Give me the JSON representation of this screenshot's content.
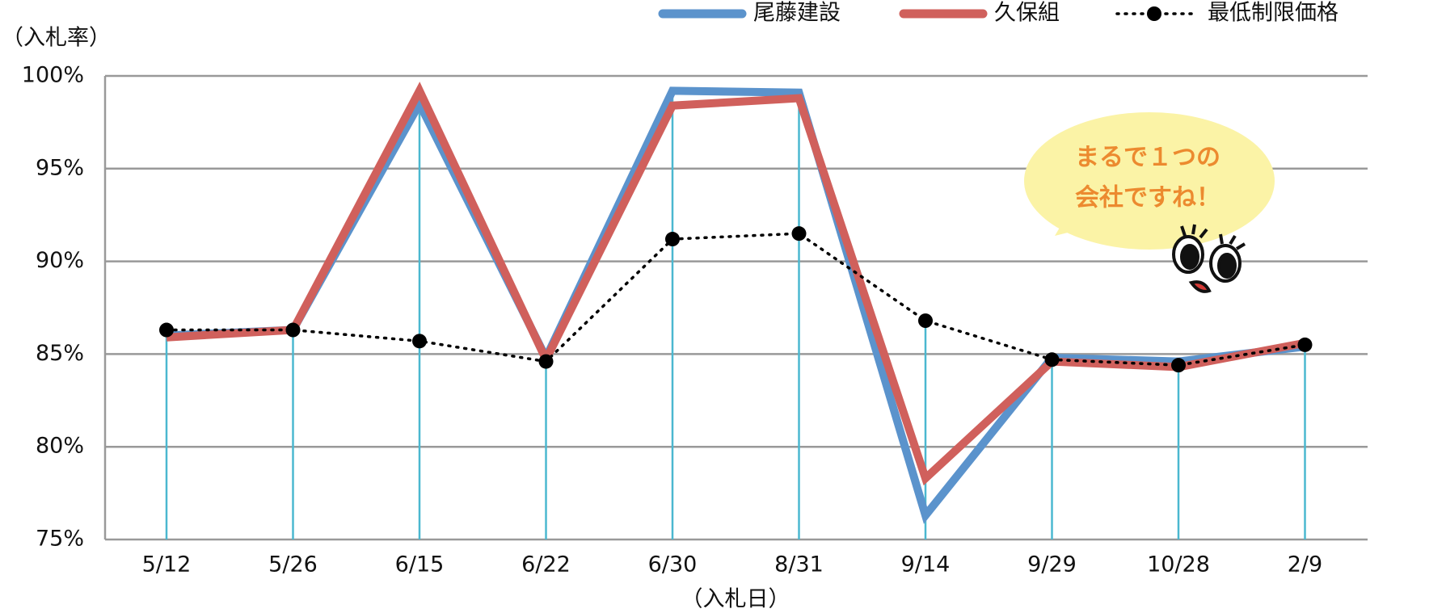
{
  "chart_data": {
    "type": "line",
    "y_label": "（入札率）",
    "x_label": "（入札日）",
    "categories": [
      "5/12",
      "5/26",
      "6/15",
      "6/22",
      "6/30",
      "8/31",
      "9/14",
      "9/29",
      "10/28",
      "2/9"
    ],
    "series": [
      {
        "name": "尾藤建設",
        "color": "#5b93cc",
        "values": [
          86.0,
          86.3,
          98.5,
          84.8,
          99.2,
          99.1,
          76.3,
          84.8,
          84.6,
          85.4
        ]
      },
      {
        "name": "久保組",
        "color": "#d0605c",
        "values": [
          85.9,
          86.3,
          99.2,
          84.7,
          98.4,
          98.8,
          78.3,
          84.6,
          84.3,
          85.6
        ]
      },
      {
        "name": "最低制限価格",
        "color": "#000000",
        "dotted": true,
        "values": [
          86.3,
          86.3,
          85.7,
          84.6,
          91.2,
          91.5,
          86.8,
          84.7,
          84.4,
          85.5
        ]
      }
    ],
    "ylim": [
      75,
      100
    ],
    "yticks": [
      {
        "value": 75,
        "label": "75%"
      },
      {
        "value": 80,
        "label": "80%"
      },
      {
        "value": 85,
        "label": "85%"
      },
      {
        "value": 90,
        "label": "90%"
      },
      {
        "value": 95,
        "label": "95%"
      },
      {
        "value": 100,
        "label": "100%"
      }
    ],
    "grid": true,
    "annotation": [
      "まるで１つの",
      "会社ですね！"
    ]
  }
}
